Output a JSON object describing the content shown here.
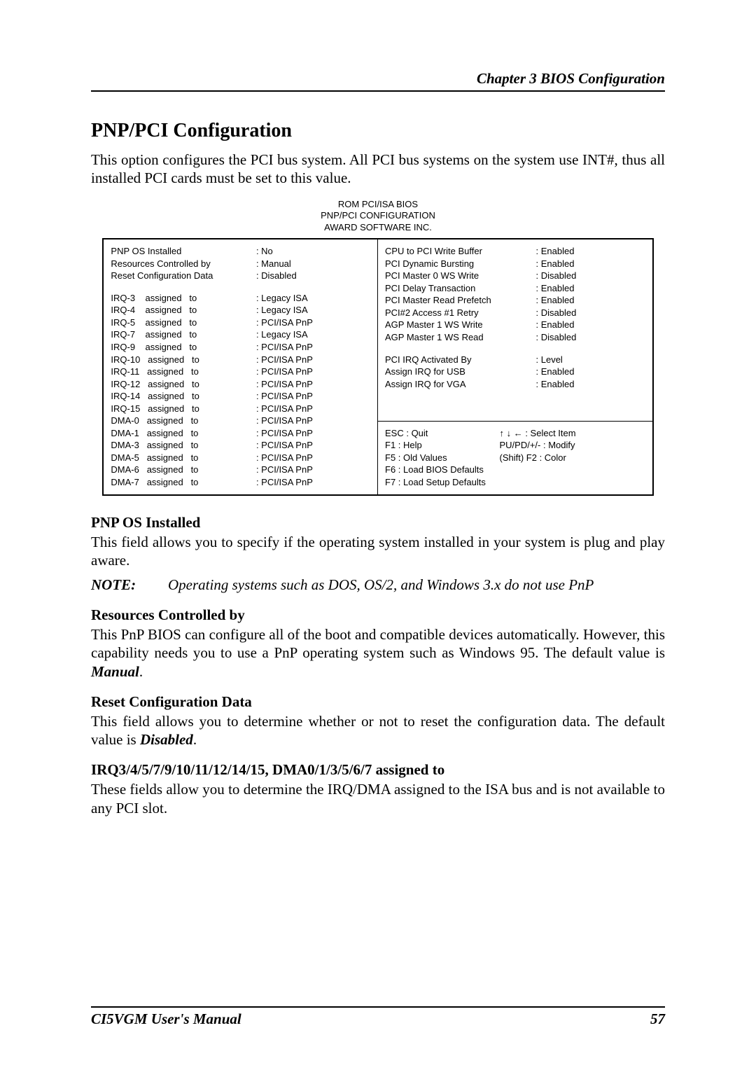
{
  "chapter_header": "Chapter 3  BIOS Configuration",
  "section_title": "PNP/PCI Configuration",
  "intro": "This option configures the PCI bus system. All PCI bus systems on the system use INT#, thus all installed PCI cards must be set to this value.",
  "bios": {
    "title1": "ROM PCI/ISA BIOS",
    "title2": "PNP/PCI CONFIGURATION",
    "title3": "AWARD SOFTWARE INC.",
    "left_top": [
      {
        "l": "PNP OS Installed",
        "v": ": No"
      },
      {
        "l": "Resources Controlled by",
        "v": ": Manual"
      },
      {
        "l": "Reset Configuration Data",
        "v": ": Disabled"
      }
    ],
    "left_mid": [
      {
        "l": "IRQ-3    assigned   to",
        "v": ": Legacy ISA"
      },
      {
        "l": "IRQ-4    assigned   to",
        "v": ": Legacy ISA"
      },
      {
        "l": "IRQ-5    assigned   to",
        "v": ": PCI/ISA PnP"
      },
      {
        "l": "IRQ-7    assigned   to",
        "v": ": Legacy ISA"
      },
      {
        "l": "IRQ-9    assigned   to",
        "v": ": PCI/ISA PnP"
      },
      {
        "l": "IRQ-10   assigned   to",
        "v": ": PCI/ISA PnP"
      },
      {
        "l": "IRQ-11   assigned   to",
        "v": ": PCI/ISA PnP"
      },
      {
        "l": "IRQ-12   assigned   to",
        "v": ": PCI/ISA PnP"
      },
      {
        "l": "IRQ-14   assigned   to",
        "v": ": PCI/ISA PnP"
      },
      {
        "l": "IRQ-15   assigned   to",
        "v": ": PCI/ISA PnP"
      },
      {
        "l": "DMA-0   assigned   to",
        "v": ": PCI/ISA PnP"
      },
      {
        "l": "DMA-1   assigned   to",
        "v": ": PCI/ISA PnP"
      },
      {
        "l": "DMA-3   assigned   to",
        "v": ": PCI/ISA PnP"
      },
      {
        "l": "DMA-5   assigned   to",
        "v": ": PCI/ISA PnP"
      },
      {
        "l": "DMA-6   assigned   to",
        "v": ": PCI/ISA PnP"
      },
      {
        "l": "DMA-7   assigned   to",
        "v": ": PCI/ISA PnP"
      }
    ],
    "right_top1": [
      {
        "l": "CPU to PCI Write Buffer",
        "v": ": Enabled"
      },
      {
        "l": "PCI Dynamic Bursting",
        "v": ": Enabled"
      },
      {
        "l": "PCI Master 0 WS Write",
        "v": ": Disabled"
      },
      {
        "l": "PCI Delay Transaction",
        "v": ": Enabled"
      },
      {
        "l": "PCI Master Read Prefetch",
        "v": ": Enabled"
      },
      {
        "l": "PCI#2 Access #1 Retry",
        "v": ": Disabled"
      },
      {
        "l": "AGP Master 1 WS Write",
        "v": ": Enabled"
      },
      {
        "l": "AGP Master 1 WS Read",
        "v": ": Disabled"
      }
    ],
    "right_top2": [
      {
        "l": "PCI IRQ Activated By",
        "v": ": Level"
      },
      {
        "l": "Assign IRQ for USB",
        "v": ": Enabled"
      },
      {
        "l": "Assign IRQ for VGA",
        "v": ": Enabled"
      }
    ],
    "nav": [
      {
        "l": "ESC : Quit",
        "r": "↑ ↓ ← : Select Item"
      },
      {
        "l": "F1 : Help",
        "r": "PU/PD/+/- : Modify"
      },
      {
        "l": "F5 : Old Values",
        "r": "(Shift) F2 : Color"
      },
      {
        "l": "F6 : Load BIOS Defaults",
        "r": ""
      },
      {
        "l": "F7 : Load Setup Defaults",
        "r": ""
      }
    ]
  },
  "s1_h": "PNP OS Installed",
  "s1_p": "This field allows you to specify if the operating system installed in your system is plug and play aware.",
  "note_label": "NOTE:",
  "note_body": "Operating systems such as DOS, OS/2, and Windows 3.x do not use PnP",
  "s2_h": "Resources Controlled by",
  "s2_p1": "This PnP BIOS can configure all of the boot and compatible devices automatically. However, this capability needs you to use a PnP operating system such as Windows 95. The default value is ",
  "s2_b": "Manual",
  "s3_h": "Reset Configuration Data",
  "s3_p1": "This field allows you to determine whether or not to reset the configuration data. The default value is ",
  "s3_b": "Disabled",
  "s4_h": "IRQ3/4/5/7/9/10/11/12/14/15, DMA0/1/3/5/6/7 assigned to",
  "s4_p": "These fields allow you to determine the IRQ/DMA assigned to the ISA bus and is not available to any PCI slot.",
  "footer_l": "CI5VGM User's Manual",
  "footer_r": "57"
}
